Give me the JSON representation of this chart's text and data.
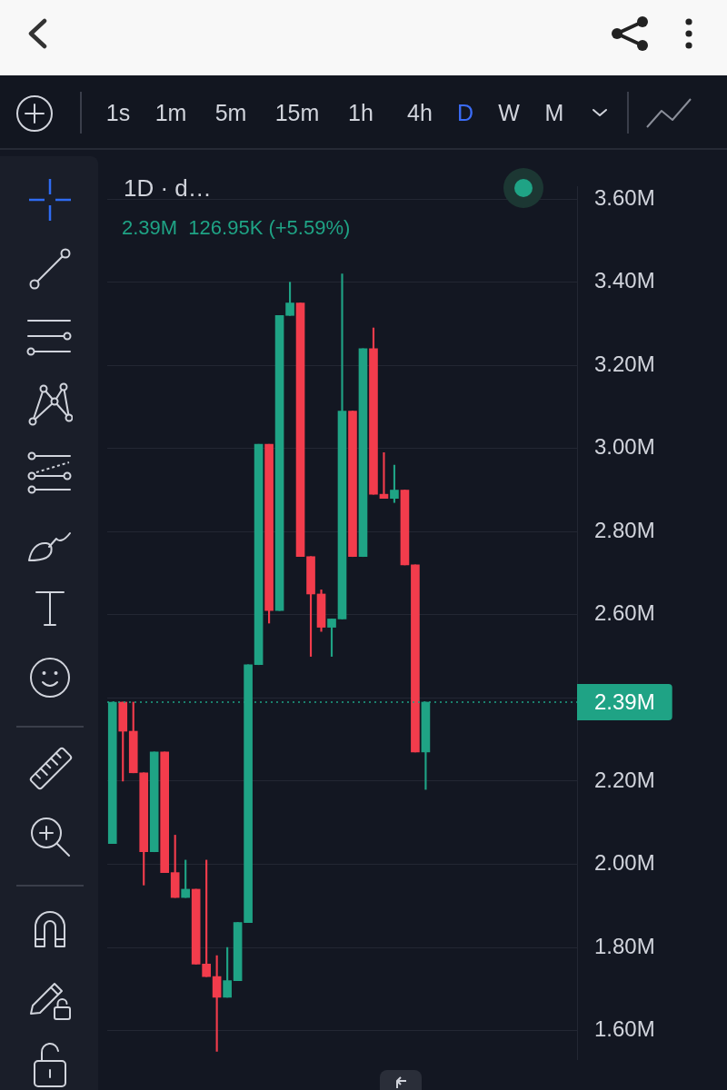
{
  "chart_data": {
    "type": "candlestick",
    "subtitle": "1D · d…",
    "annotations": [
      "1s",
      "1m",
      "5m",
      "15m",
      "1h",
      "4h",
      "D",
      "W",
      "M",
      "2.39M  126.95K (+5.59%)"
    ],
    "categories": [
      null,
      null,
      null,
      null,
      null,
      null,
      null,
      null,
      null,
      null,
      null,
      null,
      null,
      null,
      null,
      null,
      null,
      null,
      null,
      null,
      null,
      null,
      null,
      null,
      null,
      null,
      null,
      null,
      null,
      null,
      null,
      null,
      null,
      null,
      null,
      null,
      null,
      null,
      null,
      null,
      null,
      null,
      null,
      null,
      null
    ],
    "ohlc": [
      [
        2.05,
        2.39,
        2.05,
        2.39
      ],
      [
        2.39,
        2.39,
        2.2,
        2.32
      ],
      [
        2.32,
        2.39,
        2.22,
        2.22
      ],
      [
        2.22,
        2.22,
        1.95,
        2.03
      ],
      [
        2.03,
        2.27,
        2.03,
        2.27
      ],
      [
        2.27,
        2.27,
        1.98,
        1.98
      ],
      [
        1.98,
        2.07,
        1.92,
        1.92
      ],
      [
        1.92,
        2.01,
        1.92,
        1.94
      ],
      [
        1.94,
        1.94,
        1.76,
        1.76
      ],
      [
        1.76,
        2.01,
        1.73,
        1.73
      ],
      [
        1.73,
        1.78,
        1.55,
        1.68
      ],
      [
        1.68,
        1.8,
        1.68,
        1.72
      ],
      [
        1.72,
        1.86,
        1.72,
        1.86
      ],
      [
        1.86,
        2.48,
        1.86,
        2.48
      ],
      [
        2.48,
        3.01,
        2.48,
        3.01
      ],
      [
        3.01,
        3.01,
        2.58,
        2.61
      ],
      [
        2.61,
        3.32,
        2.61,
        3.32
      ],
      [
        3.32,
        3.4,
        3.32,
        3.35
      ],
      [
        3.35,
        3.35,
        2.74,
        2.74
      ],
      [
        2.74,
        2.74,
        2.5,
        2.65
      ],
      [
        2.65,
        2.66,
        2.56,
        2.57
      ],
      [
        2.57,
        2.59,
        2.5,
        2.59
      ],
      [
        2.59,
        3.42,
        2.59,
        3.09
      ],
      [
        3.09,
        3.09,
        2.74,
        2.74
      ],
      [
        2.74,
        3.24,
        2.74,
        3.24
      ],
      [
        3.24,
        3.29,
        2.89,
        2.89
      ],
      [
        2.89,
        2.99,
        2.88,
        2.88
      ],
      [
        2.88,
        2.96,
        2.87,
        2.9
      ],
      [
        2.9,
        2.9,
        2.72,
        2.72
      ],
      [
        2.72,
        2.72,
        2.27,
        2.27
      ],
      [
        2.27,
        2.39,
        2.18,
        2.39
      ],
      null,
      null,
      null,
      null,
      null,
      null,
      null,
      null,
      null,
      null,
      null,
      null,
      null,
      null
    ],
    "colors": [
      "#1fa385",
      "#f23c4c",
      "#f23c4c",
      "#f23c4c",
      "#1fa385",
      "#f23c4c",
      "#f23c4c",
      "#1fa385",
      "#f23c4c",
      "#f23c4c",
      "#f23c4c",
      "#1fa385",
      "#1fa385",
      "#1fa385",
      "#1fa385",
      "#f23c4c",
      "#1fa385",
      "#1fa385",
      "#f23c4c",
      "#f23c4c",
      "#f23c4c",
      "#1fa385",
      "#1fa385",
      "#f23c4c",
      "#1fa385",
      "#f23c4c",
      "#f23c4c",
      "#1fa385",
      "#f23c4c",
      "#f23c4c",
      "#1fa385",
      null,
      null,
      null,
      null,
      null,
      null,
      null,
      null,
      null,
      null,
      null,
      null,
      null,
      null
    ],
    "ylim": [
      1.53,
      3.63
    ],
    "yticks": [
      {
        "value": 1.6,
        "label": "1.60M"
      },
      {
        "value": 1.8,
        "label": "1.80M"
      },
      {
        "value": 2.0,
        "label": "2.00M"
      },
      {
        "value": 2.2,
        "label": "2.20M"
      },
      {
        "value": 2.4,
        "label": null
      },
      {
        "value": 2.6,
        "label": "2.60M"
      },
      {
        "value": 2.8,
        "label": "2.80M"
      },
      {
        "value": 3.0,
        "label": "3.00M"
      },
      {
        "value": 3.2,
        "label": "3.20M"
      },
      {
        "value": 3.4,
        "label": "3.40M"
      },
      {
        "value": 3.6,
        "label": "3.60M"
      }
    ],
    "grid": "y",
    "tick_labels": "y",
    "ref_lines": [
      {
        "axis": "y",
        "value": 2.39,
        "label": "2.39M",
        "color": "#1fa385",
        "line_style": "dotted"
      }
    ]
  }
}
